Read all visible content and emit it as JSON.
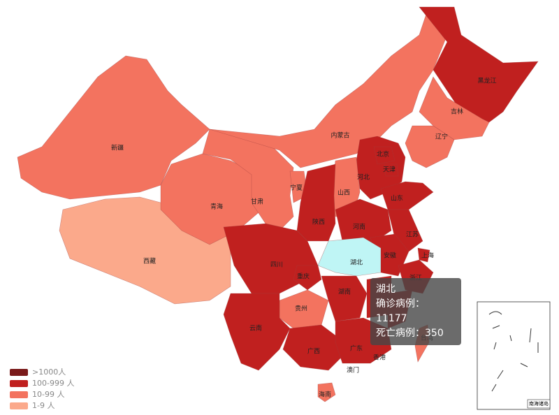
{
  "legend": [
    {
      "label": ">1000人",
      "color": "#7a1a1a"
    },
    {
      "label": "100-999 人",
      "color": "#c0201f"
    },
    {
      "label": "10-99 人",
      "color": "#f3735f"
    },
    {
      "label": "1-9 人",
      "color": "#fba98b"
    }
  ],
  "provinces": [
    {
      "name": "新疆",
      "color": "#f3735f"
    },
    {
      "name": "西藏",
      "color": "#fba98b"
    },
    {
      "name": "青海",
      "color": "#f3735f"
    },
    {
      "name": "甘肃",
      "color": "#f3735f"
    },
    {
      "name": "内蒙古",
      "color": "#f3735f"
    },
    {
      "name": "黑龙江",
      "color": "#c0201f"
    },
    {
      "name": "吉林",
      "color": "#f3735f"
    },
    {
      "name": "辽宁",
      "color": "#f3735f"
    },
    {
      "name": "河北",
      "color": "#c0201f"
    },
    {
      "name": "北京",
      "color": "#c0201f"
    },
    {
      "name": "天津",
      "color": "#c0201f"
    },
    {
      "name": "山西",
      "color": "#f3735f"
    },
    {
      "name": "宁夏",
      "color": "#f3735f"
    },
    {
      "name": "陕西",
      "color": "#c0201f"
    },
    {
      "name": "山东",
      "color": "#c0201f"
    },
    {
      "name": "河南",
      "color": "#c0201f"
    },
    {
      "name": "江苏",
      "color": "#c0201f"
    },
    {
      "name": "安徽",
      "color": "#c0201f"
    },
    {
      "name": "上海",
      "color": "#c0201f"
    },
    {
      "name": "浙江",
      "color": "#c0201f"
    },
    {
      "name": "湖北",
      "color": "#bff5f5"
    },
    {
      "name": "四川",
      "color": "#c0201f"
    },
    {
      "name": "重庆",
      "color": "#c0201f"
    },
    {
      "name": "贵州",
      "color": "#f3735f"
    },
    {
      "name": "湖南",
      "color": "#c0201f"
    },
    {
      "name": "云南",
      "color": "#c0201f"
    },
    {
      "name": "广西",
      "color": "#c0201f"
    },
    {
      "name": "广东",
      "color": "#c0201f"
    },
    {
      "name": "台湾",
      "color": "#f3735f"
    },
    {
      "name": "海南",
      "color": "#f3735f"
    },
    {
      "name": "香港",
      "color": "#c0201f"
    },
    {
      "name": "澳门",
      "color": "#c0201f"
    }
  ],
  "tooltip": {
    "title": "湖北",
    "lines": [
      "确诊病例：11177",
      "死亡病例：350"
    ]
  },
  "inset_label": "南海诸岛"
}
